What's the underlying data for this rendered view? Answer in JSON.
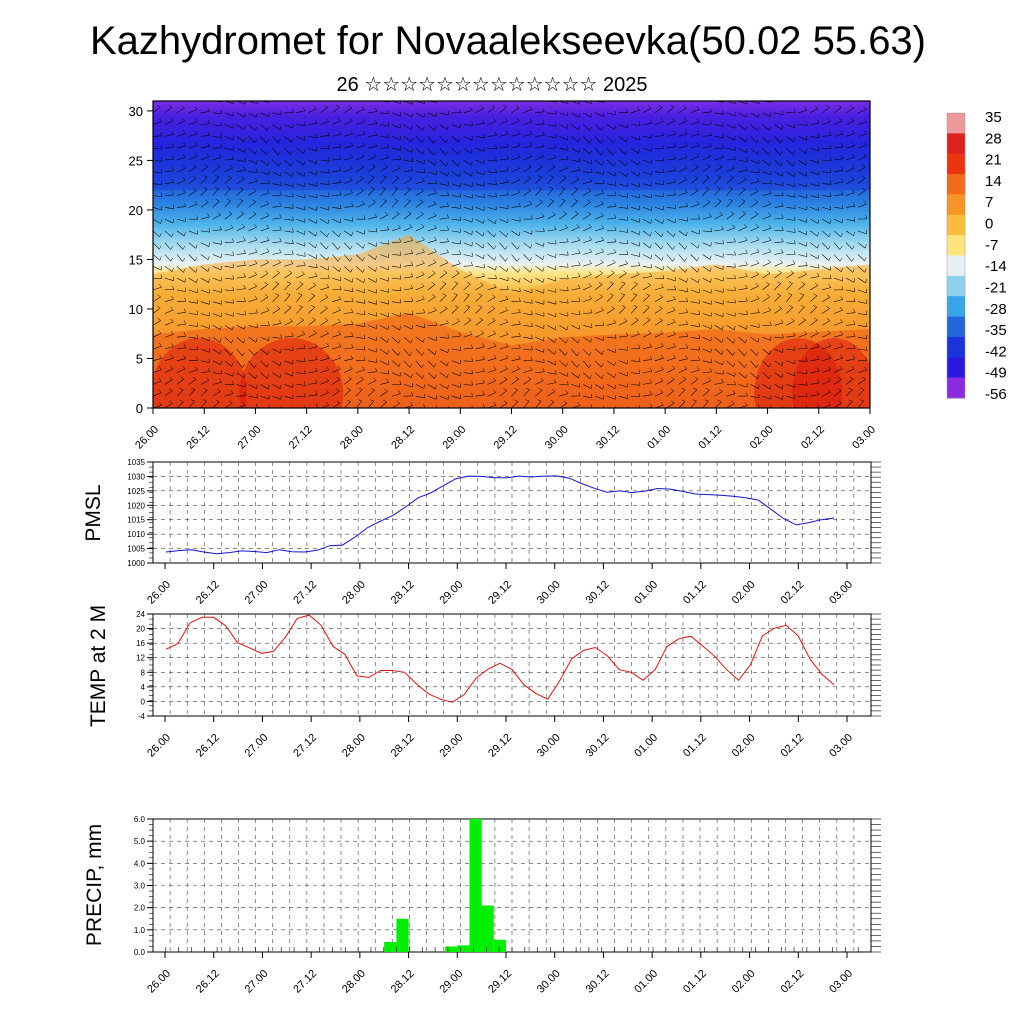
{
  "header": {
    "title": "Kazhydromet for Novaalekseevka(50.02 55.63)",
    "subtitle": "26 ☆☆☆☆☆☆☆☆☆☆☆☆☆ 2025"
  },
  "time_labels": [
    "26.00",
    "26.12",
    "27.00",
    "27.12",
    "28.00",
    "28.12",
    "29.00",
    "29.12",
    "30.00",
    "30.12",
    "01.00",
    "01.12",
    "02.00",
    "02.12",
    "03.00"
  ],
  "colorbar": {
    "labels": [
      "35",
      "28",
      "21",
      "14",
      "7",
      "0",
      "-7",
      "-14",
      "-21",
      "-28",
      "-35",
      "-42",
      "-49",
      "-56"
    ],
    "colors": [
      "#ee9999",
      "#dd2222",
      "#ee3311",
      "#f26a1a",
      "#f89526",
      "#fbbd3a",
      "#fde37a",
      "#e6f0f4",
      "#8fd0ee",
      "#38a6e6",
      "#2266dd",
      "#1a33dd",
      "#2a18e0",
      "#8a2be2"
    ]
  },
  "chart_data": [
    {
      "type": "heatmap",
      "title": "",
      "xlabel": "",
      "ylabel": "",
      "x_ticks": [
        "26.00",
        "26.12",
        "27.00",
        "27.12",
        "28.00",
        "28.12",
        "29.00",
        "29.12",
        "30.00",
        "30.12",
        "01.00",
        "01.12",
        "02.00",
        "02.12",
        "03.00"
      ],
      "y_ticks": [
        0,
        5,
        10,
        15,
        20,
        25,
        30
      ],
      "ylim": [
        0,
        31
      ],
      "colorscale_labels": [
        "35",
        "28",
        "21",
        "14",
        "7",
        "0",
        "-7",
        "-14",
        "-21",
        "-28",
        "-35",
        "-42",
        "-49",
        "-56"
      ],
      "overlay": "wind barbs",
      "description_values": {
        "boundary_yellow_blue_level_by_time": [
          13.5,
          14.5,
          15.0,
          15.0,
          15.5,
          17.5,
          14.0,
          11.5,
          13.0,
          13.5,
          13.8,
          14.5,
          13.5,
          14.0,
          14.5
        ]
      }
    },
    {
      "type": "line",
      "ylabel": "PMSL",
      "x_ticks": [
        "26.00",
        "26.12",
        "27.00",
        "27.12",
        "28.00",
        "28.12",
        "29.00",
        "29.12",
        "30.00",
        "30.12",
        "01.00",
        "01.12",
        "02.00",
        "02.12",
        "03.00"
      ],
      "y_ticks": [
        1000,
        1005,
        1010,
        1015,
        1020,
        1025,
        1030,
        1035
      ],
      "ylim": [
        1000,
        1035
      ],
      "line_color": "#1414d2",
      "series": [
        {
          "values": [
            1003.8,
            1004.3,
            1004.6,
            1003.8,
            1003.2,
            1003.6,
            1004.2,
            1004.0,
            1003.6,
            1004.6,
            1003.9,
            1003.8,
            1004.4,
            1006.0,
            1006.2,
            1009.0,
            1012.3,
            1014.5,
            1016.5,
            1019.4,
            1022.6,
            1024.3,
            1026.8,
            1029.2,
            1030.1,
            1030.0,
            1029.6,
            1029.5,
            1030.1,
            1029.8,
            1030.1,
            1030.2,
            1029.4,
            1027.5,
            1025.9,
            1024.5,
            1025.0,
            1024.4,
            1024.9,
            1025.8,
            1025.6,
            1024.8,
            1023.9,
            1023.7,
            1023.5,
            1023.1,
            1022.6,
            1021.8,
            1018.6,
            1015.4,
            1013.2,
            1014.0,
            1015.0,
            1015.6
          ]
        }
      ]
    },
    {
      "type": "line",
      "ylabel": "TEMP at 2 M",
      "x_ticks": [
        "26.00",
        "26.12",
        "27.00",
        "27.12",
        "28.00",
        "28.12",
        "29.00",
        "29.12",
        "30.00",
        "30.12",
        "01.00",
        "01.12",
        "02.00",
        "02.12",
        "03.00"
      ],
      "y_ticks": [
        -4,
        0,
        4,
        8,
        12,
        16,
        20,
        24
      ],
      "ylim": [
        -4,
        24
      ],
      "line_color": "#e01414",
      "series": [
        {
          "values": [
            14.3,
            15.9,
            21.5,
            23.1,
            23.1,
            20.8,
            16.1,
            14.7,
            13.2,
            13.7,
            17.6,
            22.8,
            23.7,
            20.9,
            15.1,
            12.9,
            7.0,
            6.6,
            8.5,
            8.5,
            8.0,
            4.8,
            2.1,
            0.6,
            -0.2,
            1.9,
            6.4,
            8.9,
            10.5,
            8.8,
            4.6,
            2.2,
            0.6,
            5.6,
            11.7,
            14.0,
            14.8,
            12.5,
            8.7,
            8.0,
            5.8,
            8.7,
            15.1,
            17.2,
            17.9,
            15.2,
            12.4,
            8.7,
            5.8,
            10.1,
            18.0,
            20.1,
            20.9,
            18.0,
            11.6,
            7.4,
            4.6
          ]
        }
      ]
    },
    {
      "type": "bar",
      "ylabel": "PRECIP, mm",
      "x_ticks": [
        "26.00",
        "26.12",
        "27.00",
        "27.12",
        "28.00",
        "28.12",
        "29.00",
        "29.12",
        "30.00",
        "30.12",
        "01.00",
        "01.12",
        "02.00",
        "02.12",
        "03.00"
      ],
      "y_ticks": [
        "0.0",
        "1.0",
        "2.0",
        "3.0",
        "4.0",
        "5.0",
        "6.0"
      ],
      "ylim": [
        0,
        6
      ],
      "bar_color": "#00ee00",
      "bars": [
        {
          "start_step": 18,
          "value": 0.45
        },
        {
          "start_step": 19,
          "value": 1.5
        },
        {
          "start_step": 23,
          "value": 0.25
        },
        {
          "start_step": 24,
          "value": 0.3
        },
        {
          "start_step": 25,
          "value": 6.0
        },
        {
          "start_step": 26,
          "value": 2.1
        },
        {
          "start_step": 27,
          "value": 0.55
        }
      ]
    }
  ]
}
